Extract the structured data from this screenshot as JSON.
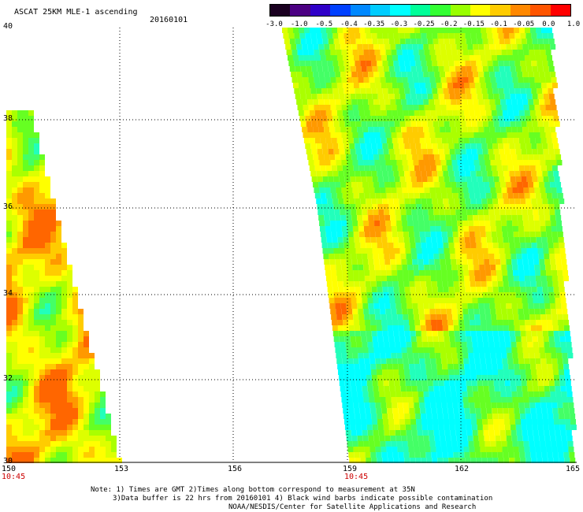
{
  "header": {
    "title": "ASCAT 25KM MLE-1 ascending",
    "date": "20160101"
  },
  "colorbar": {
    "tick_labels": [
      "-3.0",
      "-1.0",
      "-0.5",
      "-0.4",
      "-0.35",
      "-0.3",
      "-0.25",
      "-0.2",
      "-0.15",
      "-0.1",
      "-0.05",
      "0.0",
      "1.0"
    ],
    "colors": [
      "#1a0020",
      "#4b0082",
      "#2f00c8",
      "#0040ff",
      "#0088ff",
      "#00ccff",
      "#00ffff",
      "#00ff99",
      "#33ff33",
      "#99ff00",
      "#ffff00",
      "#ffcc00",
      "#ff8800",
      "#ff5500",
      "#ff0000"
    ]
  },
  "map": {
    "lat_labels": [
      "40",
      "38",
      "36",
      "34",
      "32",
      "30"
    ],
    "lon_labels": [
      "150",
      "153",
      "156",
      "159",
      "162",
      "165"
    ],
    "time_labels": [
      "10:45",
      "10:45"
    ]
  },
  "footer": {
    "line1": "Note: 1) Times are GMT 2)Times along bottom correspond to measurement at 35N",
    "line2": "3)Data buffer is 22 hrs from 20160101 4) Black wind barbs indicate possible contamination",
    "line3": "NOAA/NESDIS/Center for Satellite Applications and Research"
  }
}
